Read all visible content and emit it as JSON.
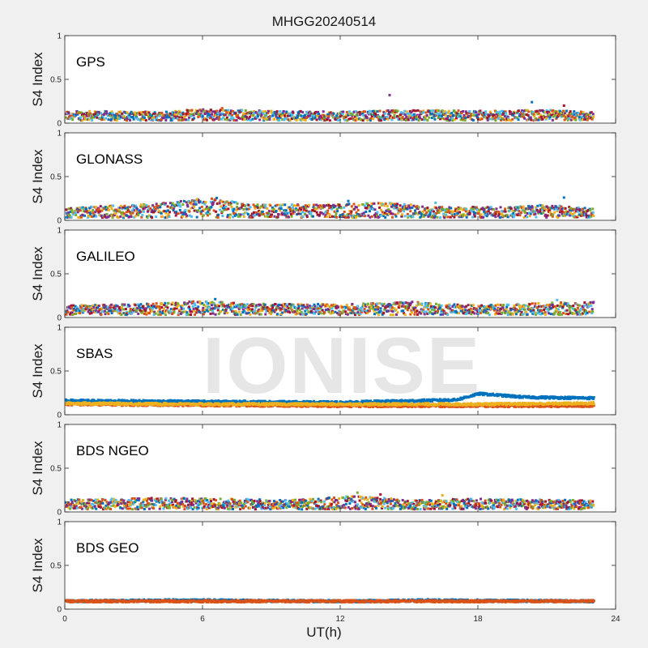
{
  "figure": {
    "title": "MHGG20240514",
    "xlabel": "UT(h)",
    "watermark": "IONISE"
  },
  "colors": {
    "axes": "#262626",
    "panel_bg": "#ffffff",
    "figure_bg": "#f0f0f0",
    "series": [
      "#0072BD",
      "#D95319",
      "#EDB120",
      "#7E2F8E",
      "#77AC30",
      "#4DBEEE",
      "#A2142F"
    ]
  },
  "chart_data": [
    {
      "type": "scatter",
      "name": "GPS",
      "ylabel": "S4 Index",
      "xlim": [
        0,
        24
      ],
      "ylim": [
        0,
        1
      ],
      "xticks": [
        0,
        6,
        12,
        18,
        24
      ],
      "xticklabels": [
        "0",
        "6",
        "12",
        "18",
        "24"
      ],
      "yticks": [
        0,
        0.5,
        1
      ],
      "yticklabels": [
        "0",
        "0.5",
        "1"
      ],
      "x_range": [
        0,
        23
      ],
      "baseline": [
        [
          0,
          0.08
        ],
        [
          4,
          0.07
        ],
        [
          6,
          0.1
        ],
        [
          9,
          0.08
        ],
        [
          12,
          0.07
        ],
        [
          15,
          0.09
        ],
        [
          18,
          0.08
        ],
        [
          21,
          0.09
        ],
        [
          23,
          0.07
        ]
      ],
      "peaks": [
        [
          14.1,
          0.32
        ],
        [
          20.3,
          0.24
        ],
        [
          21.7,
          0.2
        ],
        [
          6.8,
          0.17
        ]
      ]
    },
    {
      "type": "scatter",
      "name": "GLONASS",
      "ylabel": "S4 Index",
      "xlim": [
        0,
        24
      ],
      "ylim": [
        0,
        1
      ],
      "xticks": [
        0,
        6,
        12,
        18,
        24
      ],
      "xticklabels": [
        "0",
        "6",
        "12",
        "18",
        "24"
      ],
      "yticks": [
        0,
        0.5,
        1
      ],
      "yticklabels": [
        "0",
        "0.5",
        "1"
      ],
      "x_range": [
        0,
        23
      ],
      "baseline": [
        [
          0,
          0.08
        ],
        [
          3,
          0.12
        ],
        [
          5,
          0.16
        ],
        [
          6.5,
          0.2
        ],
        [
          8,
          0.12
        ],
        [
          11,
          0.12
        ],
        [
          14,
          0.14
        ],
        [
          16,
          0.1
        ],
        [
          19,
          0.09
        ],
        [
          21,
          0.12
        ],
        [
          23,
          0.07
        ]
      ],
      "peaks": [
        [
          5.7,
          0.24
        ],
        [
          12.3,
          0.22
        ],
        [
          16.1,
          0.2
        ],
        [
          21.7,
          0.26
        ]
      ]
    },
    {
      "type": "scatter",
      "name": "GALILEO",
      "ylabel": "S4 Index",
      "xlim": [
        0,
        24
      ],
      "ylim": [
        0,
        1
      ],
      "xticks": [
        0,
        6,
        12,
        18,
        24
      ],
      "xticklabels": [
        "0",
        "6",
        "12",
        "18",
        "24"
      ],
      "yticks": [
        0,
        0.5,
        1
      ],
      "yticklabels": [
        "0",
        "0.5",
        "1"
      ],
      "x_range": [
        0,
        23
      ],
      "baseline": [
        [
          0,
          0.08
        ],
        [
          3,
          0.09
        ],
        [
          6,
          0.13
        ],
        [
          8,
          0.1
        ],
        [
          12,
          0.09
        ],
        [
          15,
          0.12
        ],
        [
          18,
          0.08
        ],
        [
          21,
          0.11
        ],
        [
          23,
          0.12
        ]
      ],
      "peaks": [
        [
          6.5,
          0.21
        ],
        [
          21.4,
          0.2
        ],
        [
          22.6,
          0.17
        ]
      ]
    },
    {
      "type": "scatter",
      "name": "SBAS",
      "ylabel": "S4 Index",
      "xlim": [
        0,
        24
      ],
      "ylim": [
        0,
        1
      ],
      "xticks": [
        0,
        6,
        12,
        18,
        24
      ],
      "xticklabels": [
        "0",
        "6",
        "12",
        "18",
        "24"
      ],
      "yticks": [
        0,
        0.5,
        1
      ],
      "yticklabels": [
        "0",
        "0.5",
        "1"
      ],
      "x_range": [
        0,
        23
      ],
      "series_levels": [
        [
          [
            0,
            0.16
          ],
          [
            6,
            0.15
          ],
          [
            12,
            0.14
          ],
          [
            17,
            0.17
          ],
          [
            18,
            0.24
          ],
          [
            20,
            0.2
          ],
          [
            23,
            0.19
          ]
        ],
        [
          [
            0,
            0.12
          ],
          [
            6,
            0.11
          ],
          [
            12,
            0.1
          ],
          [
            18,
            0.1
          ],
          [
            23,
            0.1
          ]
        ],
        [
          [
            0,
            0.13
          ],
          [
            6,
            0.12
          ],
          [
            12,
            0.12
          ],
          [
            18,
            0.12
          ],
          [
            23,
            0.13
          ]
        ]
      ]
    },
    {
      "type": "scatter",
      "name": "BDS NGEO",
      "ylabel": "S4 Index",
      "xlim": [
        0,
        24
      ],
      "ylim": [
        0,
        1
      ],
      "xticks": [
        0,
        6,
        12,
        18,
        24
      ],
      "xticklabels": [
        "0",
        "6",
        "12",
        "18",
        "24"
      ],
      "yticks": [
        0,
        0.5,
        1
      ],
      "yticklabels": [
        "0",
        "0.5",
        "1"
      ],
      "x_range": [
        0,
        23
      ],
      "baseline": [
        [
          0,
          0.08
        ],
        [
          4,
          0.1
        ],
        [
          7,
          0.09
        ],
        [
          10,
          0.08
        ],
        [
          12.5,
          0.12
        ],
        [
          15,
          0.08
        ],
        [
          18,
          0.09
        ],
        [
          21,
          0.08
        ],
        [
          23,
          0.07
        ]
      ],
      "peaks": [
        [
          12.7,
          0.22
        ],
        [
          13.7,
          0.2
        ],
        [
          16.4,
          0.19
        ]
      ]
    },
    {
      "type": "scatter",
      "name": "BDS GEO",
      "ylabel": "S4 Index",
      "xlim": [
        0,
        24
      ],
      "ylim": [
        0,
        1
      ],
      "xticks": [
        0,
        6,
        12,
        18,
        24
      ],
      "xticklabels": [
        "0",
        "6",
        "12",
        "18",
        "24"
      ],
      "yticks": [
        0,
        0.5,
        1
      ],
      "yticklabels": [
        "0",
        "0.5",
        "1"
      ],
      "x_range": [
        0,
        23
      ],
      "series_levels": [
        [
          [
            0,
            0.09
          ],
          [
            5,
            0.1
          ],
          [
            12,
            0.09
          ],
          [
            16,
            0.1
          ],
          [
            23,
            0.09
          ]
        ],
        [
          [
            0,
            0.09
          ],
          [
            6,
            0.09
          ],
          [
            12,
            0.09
          ],
          [
            18,
            0.09
          ],
          [
            23,
            0.09
          ]
        ]
      ]
    }
  ]
}
